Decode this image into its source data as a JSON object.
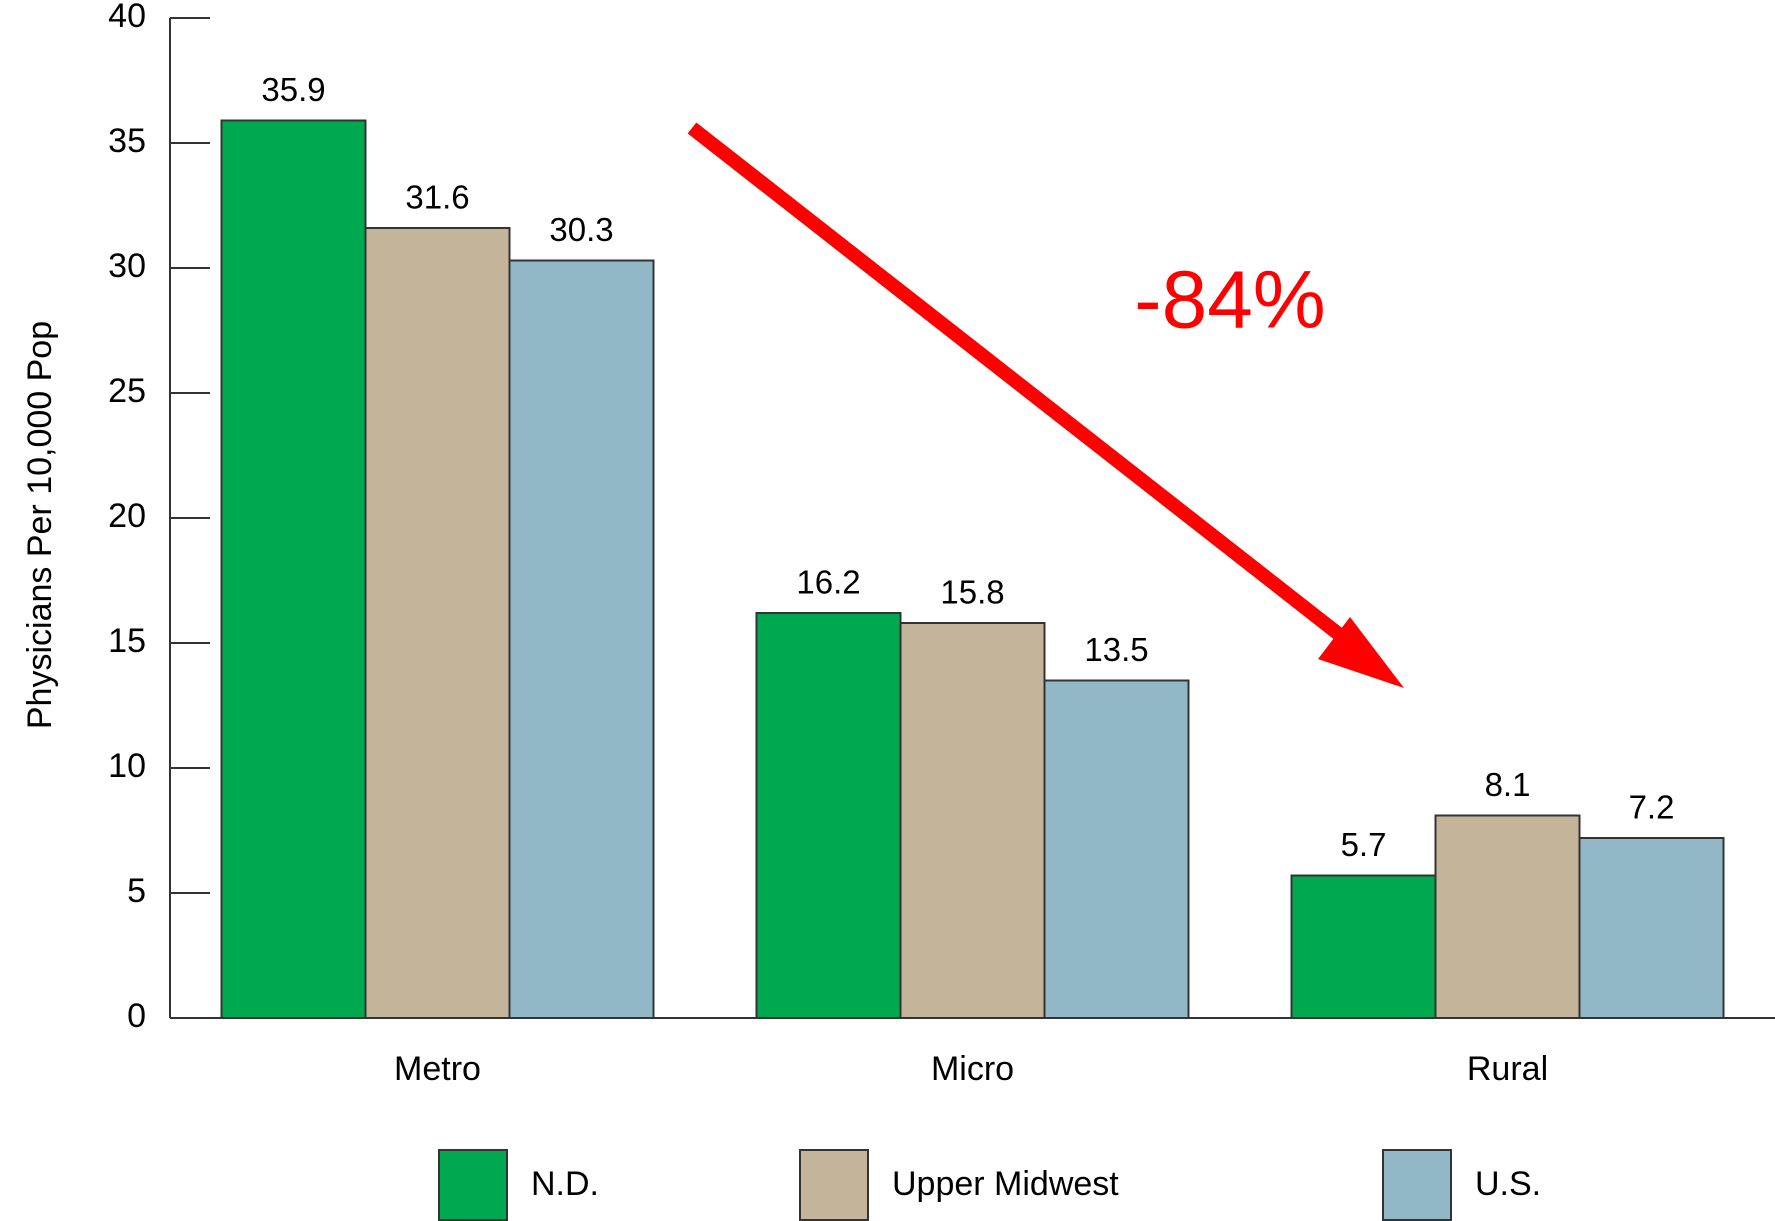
{
  "chart_data": {
    "type": "bar",
    "y_label": "Physicians Per 10,000 Pop",
    "annotation": "-84%",
    "categories": [
      "Metro",
      "Micro",
      "Rural"
    ],
    "series": [
      {
        "name": "N.D.",
        "color": "#00a94f",
        "values": [
          35.9,
          16.2,
          5.7
        ]
      },
      {
        "name": "Upper Midwest",
        "color": "#c4b49a",
        "values": [
          31.6,
          15.8,
          8.1
        ]
      },
      {
        "name": "U.S.",
        "color": "#92b8c8",
        "values": [
          30.3,
          13.5,
          7.2
        ]
      }
    ],
    "ylim": [
      0,
      40
    ],
    "yticks": [
      0,
      5,
      10,
      15,
      20,
      25,
      30,
      35,
      40
    ],
    "grid": false
  }
}
